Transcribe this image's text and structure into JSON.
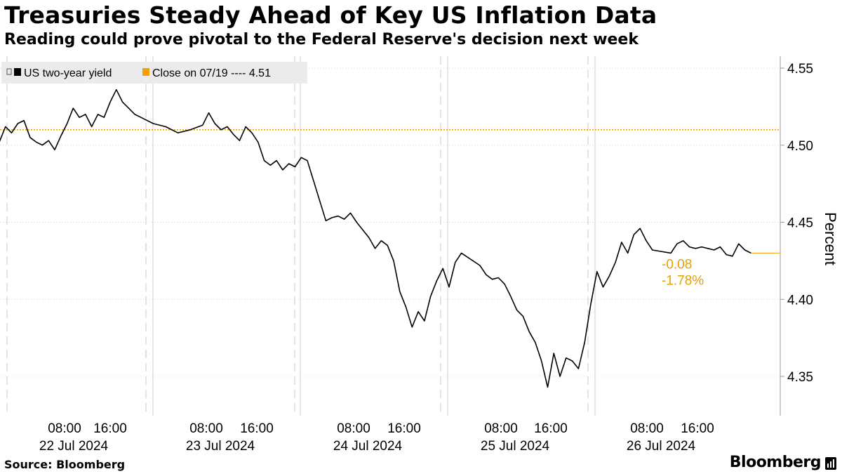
{
  "header": {
    "title": "Treasuries Steady Ahead of Key US Inflation Data",
    "subtitle": "Reading could prove pivotal to the Federal Reserve's decision next week"
  },
  "footer": {
    "source": "Source: Bloomberg",
    "brand": "Bloomberg"
  },
  "chart_data": {
    "type": "line",
    "title": "",
    "ylabel": "Percent",
    "ylim": [
      4.325,
      4.555
    ],
    "y_ticks": [
      4.35,
      4.4,
      4.45,
      4.5,
      4.55
    ],
    "y_tick_labels": [
      "4.35",
      "4.40",
      "4.45",
      "4.50",
      "4.55"
    ],
    "x_time_labels": [
      "08:00",
      "16:00",
      "08:00",
      "16:00",
      "08:00",
      "16:00",
      "08:00",
      "16:00",
      "08:00",
      "16:00"
    ],
    "x_date_labels": [
      "22 Jul 2024",
      "23 Jul 2024",
      "24 Jul 2024",
      "25 Jul 2024",
      "26 Jul 2024"
    ],
    "grid": true,
    "legend": {
      "position": "top-left",
      "entries": [
        "US two-year yield",
        "Close on 07/19 ---- 4.51"
      ]
    },
    "reference_line": {
      "name": "Close on 07/19",
      "value": 4.51,
      "color": "#f5a000"
    },
    "last_value": 4.43,
    "annotations": {
      "change": "-0.08",
      "change_pct": "-1.78%"
    },
    "colors": {
      "series": "#000000",
      "reference": "#f5a000",
      "annotation": "#e8a000"
    },
    "series": [
      {
        "name": "US two-year yield",
        "points": [
          [
            "21 Jul 2024 22:00",
            4.509
          ],
          [
            "21 Jul 2024 23:00",
            4.502
          ],
          [
            "22 Jul 2024 00:00",
            4.512
          ],
          [
            "22 Jul 2024 01:00",
            4.508
          ],
          [
            "22 Jul 2024 02:00",
            4.514
          ],
          [
            "22 Jul 2024 03:00",
            4.516
          ],
          [
            "22 Jul 2024 04:00",
            4.505
          ],
          [
            "22 Jul 2024 05:00",
            4.502
          ],
          [
            "22 Jul 2024 06:00",
            4.5
          ],
          [
            "22 Jul 2024 07:00",
            4.503
          ],
          [
            "22 Jul 2024 08:00",
            4.497
          ],
          [
            "22 Jul 2024 09:00",
            4.506
          ],
          [
            "22 Jul 2024 10:00",
            4.514
          ],
          [
            "22 Jul 2024 11:00",
            4.524
          ],
          [
            "22 Jul 2024 12:00",
            4.518
          ],
          [
            "22 Jul 2024 13:00",
            4.52
          ],
          [
            "22 Jul 2024 14:00",
            4.512
          ],
          [
            "22 Jul 2024 15:00",
            4.52
          ],
          [
            "22 Jul 2024 16:00",
            4.518
          ],
          [
            "22 Jul 2024 17:00",
            4.528
          ],
          [
            "22 Jul 2024 18:00",
            4.536
          ],
          [
            "22 Jul 2024 19:00",
            4.528
          ],
          [
            "22 Jul 2024 20:00",
            4.524
          ],
          [
            "22 Jul 2024 21:00",
            4.52
          ],
          [
            "22 Jul 2024 22:00",
            4.518
          ],
          [
            "23 Jul 2024 00:00",
            4.514
          ],
          [
            "23 Jul 2024 02:00",
            4.512
          ],
          [
            "23 Jul 2024 04:00",
            4.508
          ],
          [
            "23 Jul 2024 06:00",
            4.51
          ],
          [
            "23 Jul 2024 08:00",
            4.513
          ],
          [
            "23 Jul 2024 09:00",
            4.521
          ],
          [
            "23 Jul 2024 10:00",
            4.514
          ],
          [
            "23 Jul 2024 11:00",
            4.51
          ],
          [
            "23 Jul 2024 12:00",
            4.512
          ],
          [
            "23 Jul 2024 13:00",
            4.507
          ],
          [
            "23 Jul 2024 14:00",
            4.503
          ],
          [
            "23 Jul 2024 15:00",
            4.512
          ],
          [
            "23 Jul 2024 16:00",
            4.508
          ],
          [
            "23 Jul 2024 17:00",
            4.502
          ],
          [
            "23 Jul 2024 18:00",
            4.49
          ],
          [
            "23 Jul 2024 19:00",
            4.487
          ],
          [
            "23 Jul 2024 20:00",
            4.49
          ],
          [
            "23 Jul 2024 21:00",
            4.484
          ],
          [
            "23 Jul 2024 22:00",
            4.488
          ],
          [
            "23 Jul 2024 23:00",
            4.486
          ],
          [
            "24 Jul 2024 00:00",
            4.492
          ],
          [
            "24 Jul 2024 01:00",
            4.49
          ],
          [
            "24 Jul 2024 04:00",
            4.451
          ],
          [
            "24 Jul 2024 05:00",
            4.453
          ],
          [
            "24 Jul 2024 06:00",
            4.454
          ],
          [
            "24 Jul 2024 07:00",
            4.452
          ],
          [
            "24 Jul 2024 08:00",
            4.456
          ],
          [
            "24 Jul 2024 09:00",
            4.45
          ],
          [
            "24 Jul 2024 10:00",
            4.445
          ],
          [
            "24 Jul 2024 11:00",
            4.44
          ],
          [
            "24 Jul 2024 12:00",
            4.433
          ],
          [
            "24 Jul 2024 13:00",
            4.438
          ],
          [
            "24 Jul 2024 14:00",
            4.435
          ],
          [
            "24 Jul 2024 15:00",
            4.425
          ],
          [
            "24 Jul 2024 16:00",
            4.405
          ],
          [
            "24 Jul 2024 17:00",
            4.395
          ],
          [
            "24 Jul 2024 18:00",
            4.382
          ],
          [
            "24 Jul 2024 19:00",
            4.392
          ],
          [
            "24 Jul 2024 20:00",
            4.386
          ],
          [
            "24 Jul 2024 21:00",
            4.402
          ],
          [
            "24 Jul 2024 22:00",
            4.412
          ],
          [
            "24 Jul 2024 23:00",
            4.42
          ],
          [
            "25 Jul 2024 00:00",
            4.408
          ],
          [
            "25 Jul 2024 01:00",
            4.424
          ],
          [
            "25 Jul 2024 02:00",
            4.43
          ],
          [
            "25 Jul 2024 05:00",
            4.422
          ],
          [
            "25 Jul 2024 06:00",
            4.416
          ],
          [
            "25 Jul 2024 07:00",
            4.413
          ],
          [
            "25 Jul 2024 08:00",
            4.414
          ],
          [
            "25 Jul 2024 09:00",
            4.41
          ],
          [
            "25 Jul 2024 10:00",
            4.402
          ],
          [
            "25 Jul 2024 11:00",
            4.393
          ],
          [
            "25 Jul 2024 12:00",
            4.389
          ],
          [
            "25 Jul 2024 13:00",
            4.379
          ],
          [
            "25 Jul 2024 14:00",
            4.372
          ],
          [
            "25 Jul 2024 15:00",
            4.36
          ],
          [
            "25 Jul 2024 16:00",
            4.343
          ],
          [
            "25 Jul 2024 17:00",
            4.365
          ],
          [
            "25 Jul 2024 18:00",
            4.35
          ],
          [
            "25 Jul 2024 19:00",
            4.362
          ],
          [
            "25 Jul 2024 20:00",
            4.36
          ],
          [
            "25 Jul 2024 21:00",
            4.355
          ],
          [
            "25 Jul 2024 22:00",
            4.372
          ],
          [
            "25 Jul 2024 23:00",
            4.397
          ],
          [
            "26 Jul 2024 00:00",
            4.418
          ],
          [
            "26 Jul 2024 01:00",
            4.408
          ],
          [
            "26 Jul 2024 02:00",
            4.415
          ],
          [
            "26 Jul 2024 03:00",
            4.424
          ],
          [
            "26 Jul 2024 04:00",
            4.437
          ],
          [
            "26 Jul 2024 05:00",
            4.43
          ],
          [
            "26 Jul 2024 06:00",
            4.442
          ],
          [
            "26 Jul 2024 07:00",
            4.446
          ],
          [
            "26 Jul 2024 08:00",
            4.438
          ],
          [
            "26 Jul 2024 09:00",
            4.432
          ],
          [
            "26 Jul 2024 12:00",
            4.43
          ],
          [
            "26 Jul 2024 13:00",
            4.436
          ],
          [
            "26 Jul 2024 14:00",
            4.438
          ],
          [
            "26 Jul 2024 15:00",
            4.434
          ],
          [
            "26 Jul 2024 16:00",
            4.433
          ],
          [
            "26 Jul 2024 17:00",
            4.434
          ],
          [
            "26 Jul 2024 18:00",
            4.433
          ],
          [
            "26 Jul 2024 19:00",
            4.432
          ],
          [
            "26 Jul 2024 20:00",
            4.434
          ],
          [
            "26 Jul 2024 21:00",
            4.429
          ],
          [
            "26 Jul 2024 22:00",
            4.428
          ],
          [
            "26 Jul 2024 23:00",
            4.436
          ],
          [
            "27 Jul 2024 00:00",
            4.432
          ],
          [
            "27 Jul 2024 01:00",
            4.43
          ]
        ]
      }
    ]
  }
}
